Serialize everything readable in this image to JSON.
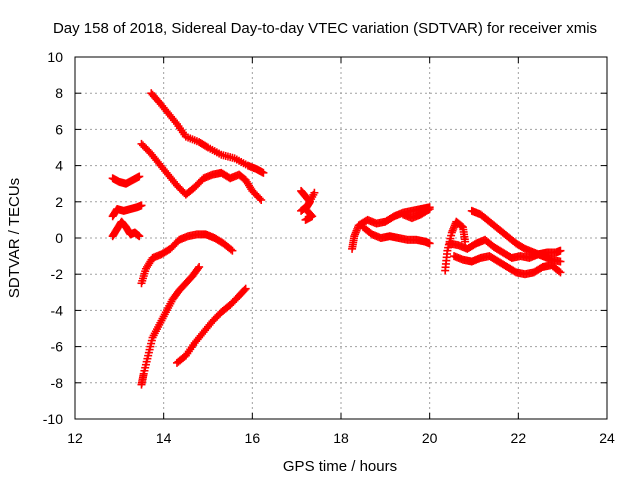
{
  "chart_data": {
    "type": "scatter",
    "title": "Day 158 of 2018, Sidereal Day-to-day VTEC variation (SDTVAR) for receiver xmis",
    "xlabel": "GPS time / hours",
    "ylabel": "SDTVAR / TECUs",
    "xlim": [
      12,
      24
    ],
    "ylim": [
      -10,
      10
    ],
    "xticks": [
      12,
      14,
      16,
      18,
      20,
      22,
      24
    ],
    "yticks": [
      -10,
      -8,
      -6,
      -4,
      -2,
      0,
      2,
      4,
      6,
      8,
      10
    ],
    "grid": true,
    "marker": "plus",
    "color": "#ff0000",
    "legend": "none",
    "arcs": [
      [
        [
          13.72,
          8.0
        ],
        [
          13.9,
          7.5
        ],
        [
          14.1,
          6.9
        ],
        [
          14.3,
          6.3
        ],
        [
          14.5,
          5.6
        ],
        [
          14.8,
          5.3
        ],
        [
          15.0,
          5.0
        ],
        [
          15.3,
          4.6
        ],
        [
          15.6,
          4.4
        ],
        [
          15.9,
          4.0
        ],
        [
          16.1,
          3.8
        ],
        [
          16.25,
          3.6
        ]
      ],
      [
        [
          13.5,
          5.2
        ],
        [
          13.7,
          4.7
        ],
        [
          13.9,
          4.1
        ],
        [
          14.1,
          3.5
        ],
        [
          14.3,
          2.9
        ],
        [
          14.5,
          2.4
        ],
        [
          14.7,
          2.8
        ],
        [
          14.9,
          3.3
        ],
        [
          15.1,
          3.5
        ],
        [
          15.3,
          3.6
        ],
        [
          15.5,
          3.3
        ],
        [
          15.7,
          3.5
        ],
        [
          15.85,
          3.2
        ],
        [
          16.0,
          2.6
        ],
        [
          16.2,
          2.1
        ]
      ],
      [
        [
          12.85,
          3.3
        ],
        [
          13.0,
          3.1
        ],
        [
          13.15,
          3.0
        ],
        [
          13.3,
          3.2
        ],
        [
          13.45,
          3.4
        ]
      ],
      [
        [
          12.85,
          1.2
        ],
        [
          12.95,
          1.6
        ],
        [
          13.1,
          1.5
        ],
        [
          13.25,
          1.6
        ],
        [
          13.4,
          1.7
        ],
        [
          13.5,
          1.8
        ]
      ],
      [
        [
          12.85,
          0.1
        ],
        [
          12.95,
          0.5
        ],
        [
          13.05,
          0.9
        ],
        [
          13.15,
          0.6
        ],
        [
          13.25,
          0.2
        ],
        [
          13.35,
          0.3
        ],
        [
          13.45,
          0.1
        ]
      ],
      [
        [
          13.5,
          -2.5
        ],
        [
          13.6,
          -1.7
        ],
        [
          13.75,
          -1.1
        ],
        [
          13.95,
          -0.9
        ],
        [
          14.15,
          -0.6
        ],
        [
          14.35,
          -0.1
        ],
        [
          14.55,
          0.1
        ],
        [
          14.75,
          0.2
        ],
        [
          14.95,
          0.2
        ],
        [
          15.15,
          0.0
        ],
        [
          15.35,
          -0.3
        ],
        [
          15.55,
          -0.7
        ]
      ],
      [
        [
          13.5,
          -8.1
        ],
        [
          13.55,
          -7.5
        ],
        [
          13.65,
          -6.5
        ],
        [
          13.75,
          -5.5
        ],
        [
          13.9,
          -4.8
        ],
        [
          14.05,
          -4.1
        ],
        [
          14.2,
          -3.4
        ],
        [
          14.35,
          -2.9
        ],
        [
          14.5,
          -2.5
        ],
        [
          14.65,
          -2.1
        ],
        [
          14.8,
          -1.6
        ]
      ],
      [
        [
          14.3,
          -6.9
        ],
        [
          14.5,
          -6.5
        ],
        [
          14.7,
          -5.8
        ],
        [
          14.9,
          -5.2
        ],
        [
          15.1,
          -4.6
        ],
        [
          15.3,
          -4.1
        ],
        [
          15.5,
          -3.7
        ],
        [
          15.7,
          -3.2
        ],
        [
          15.85,
          -2.8
        ]
      ],
      [
        [
          17.1,
          2.6
        ],
        [
          17.2,
          2.3
        ],
        [
          17.3,
          2.0
        ],
        [
          17.2,
          1.6
        ],
        [
          17.35,
          1.2
        ],
        [
          17.2,
          1.0
        ]
      ],
      [
        [
          17.1,
          1.5
        ],
        [
          17.25,
          1.8
        ],
        [
          17.4,
          2.5
        ]
      ],
      [
        [
          18.25,
          -0.6
        ],
        [
          18.3,
          0.1
        ],
        [
          18.4,
          0.7
        ],
        [
          18.6,
          1.0
        ],
        [
          18.8,
          0.8
        ],
        [
          19.0,
          0.9
        ],
        [
          19.2,
          1.2
        ],
        [
          19.4,
          1.4
        ],
        [
          19.6,
          1.5
        ],
        [
          19.8,
          1.6
        ],
        [
          20.0,
          1.7
        ]
      ],
      [
        [
          18.5,
          0.6
        ],
        [
          18.7,
          0.2
        ],
        [
          18.9,
          0.0
        ],
        [
          19.1,
          0.1
        ],
        [
          19.3,
          0.0
        ],
        [
          19.5,
          -0.1
        ],
        [
          19.7,
          -0.1
        ],
        [
          19.9,
          -0.2
        ],
        [
          20.0,
          -0.3
        ]
      ],
      [
        [
          19.4,
          1.3
        ],
        [
          19.6,
          1.1
        ],
        [
          19.8,
          1.3
        ],
        [
          20.0,
          1.6
        ]
      ],
      [
        [
          20.35,
          -1.8
        ],
        [
          20.4,
          -0.7
        ],
        [
          20.5,
          0.3
        ],
        [
          20.6,
          0.9
        ],
        [
          20.75,
          0.6
        ],
        [
          20.8,
          -0.2
        ]
      ],
      [
        [
          20.45,
          -0.3
        ],
        [
          20.65,
          -0.4
        ],
        [
          20.85,
          -0.6
        ],
        [
          21.05,
          -0.3
        ],
        [
          21.25,
          -0.1
        ],
        [
          21.45,
          -0.5
        ],
        [
          21.65,
          -0.8
        ],
        [
          21.85,
          -1.1
        ],
        [
          22.05,
          -1.0
        ],
        [
          22.25,
          -1.1
        ],
        [
          22.45,
          -0.9
        ],
        [
          22.65,
          -0.8
        ],
        [
          22.85,
          -0.8
        ],
        [
          22.95,
          -0.7
        ]
      ],
      [
        [
          20.55,
          -1.0
        ],
        [
          20.75,
          -1.2
        ],
        [
          20.95,
          -1.3
        ],
        [
          21.15,
          -1.1
        ],
        [
          21.35,
          -1.0
        ],
        [
          21.55,
          -1.3
        ],
        [
          21.75,
          -1.6
        ],
        [
          21.95,
          -1.9
        ],
        [
          22.15,
          -2.0
        ],
        [
          22.35,
          -1.9
        ],
        [
          22.55,
          -1.6
        ],
        [
          22.75,
          -1.5
        ],
        [
          22.95,
          -1.9
        ]
      ],
      [
        [
          20.95,
          1.5
        ],
        [
          21.15,
          1.3
        ],
        [
          21.35,
          0.9
        ],
        [
          21.55,
          0.5
        ],
        [
          21.75,
          0.1
        ],
        [
          21.95,
          -0.3
        ],
        [
          22.15,
          -0.6
        ],
        [
          22.35,
          -0.8
        ],
        [
          22.55,
          -1.0
        ],
        [
          22.75,
          -1.2
        ],
        [
          22.95,
          -1.3
        ]
      ]
    ]
  }
}
